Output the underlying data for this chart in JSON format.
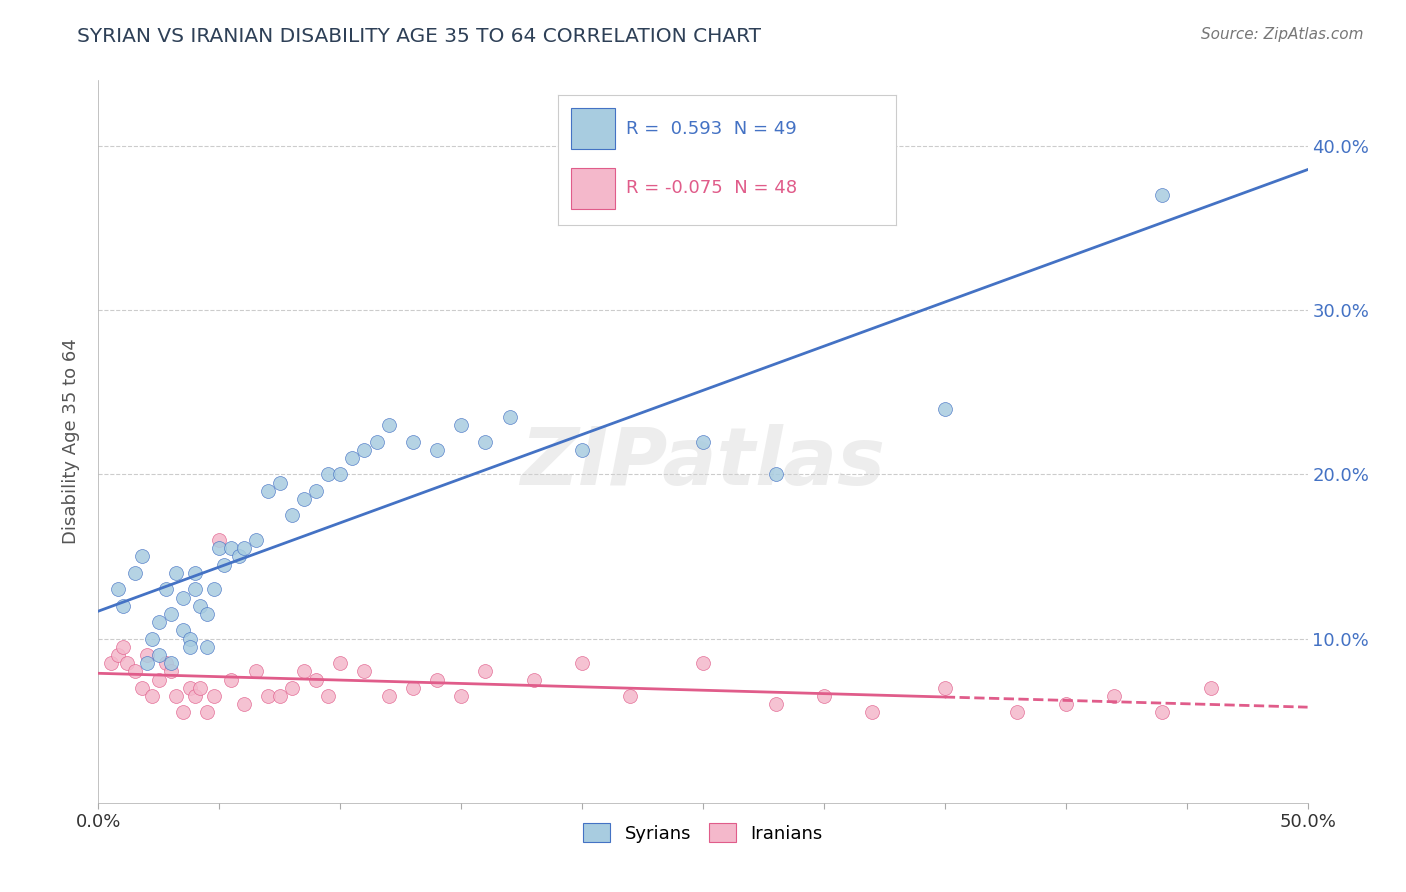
{
  "title": "SYRIAN VS IRANIAN DISABILITY AGE 35 TO 64 CORRELATION CHART",
  "source_text": "Source: ZipAtlas.com",
  "ylabel": "Disability Age 35 to 64",
  "xlim": [
    0.0,
    0.5
  ],
  "ylim": [
    0.0,
    0.44
  ],
  "xticks": [
    0.0,
    0.05,
    0.1,
    0.15,
    0.2,
    0.25,
    0.3,
    0.35,
    0.4,
    0.45,
    0.5
  ],
  "yticks": [
    0.0,
    0.1,
    0.2,
    0.3,
    0.4
  ],
  "background_color": "#ffffff",
  "grid_color": "#cccccc",
  "syrians_color": "#a8cce0",
  "iranians_color": "#f4b8cb",
  "syrian_line_color": "#4472c4",
  "iranian_line_color": "#e05c8a",
  "syrian_R": 0.593,
  "syrian_N": 49,
  "iranian_R": -0.075,
  "iranian_N": 48,
  "watermark": "ZIPatlas",
  "solid_cutoff": 0.35,
  "syrians_x": [
    0.008,
    0.01,
    0.015,
    0.018,
    0.02,
    0.022,
    0.025,
    0.025,
    0.028,
    0.03,
    0.03,
    0.032,
    0.035,
    0.035,
    0.038,
    0.038,
    0.04,
    0.04,
    0.042,
    0.045,
    0.045,
    0.048,
    0.05,
    0.052,
    0.055,
    0.058,
    0.06,
    0.065,
    0.07,
    0.075,
    0.08,
    0.085,
    0.09,
    0.095,
    0.1,
    0.105,
    0.11,
    0.115,
    0.12,
    0.13,
    0.14,
    0.15,
    0.16,
    0.17,
    0.2,
    0.25,
    0.28,
    0.35,
    0.44
  ],
  "syrians_y": [
    0.13,
    0.12,
    0.14,
    0.15,
    0.085,
    0.1,
    0.11,
    0.09,
    0.13,
    0.115,
    0.085,
    0.14,
    0.125,
    0.105,
    0.1,
    0.095,
    0.14,
    0.13,
    0.12,
    0.115,
    0.095,
    0.13,
    0.155,
    0.145,
    0.155,
    0.15,
    0.155,
    0.16,
    0.19,
    0.195,
    0.175,
    0.185,
    0.19,
    0.2,
    0.2,
    0.21,
    0.215,
    0.22,
    0.23,
    0.22,
    0.215,
    0.23,
    0.22,
    0.235,
    0.215,
    0.22,
    0.2,
    0.24,
    0.37
  ],
  "iranians_x": [
    0.005,
    0.008,
    0.01,
    0.012,
    0.015,
    0.018,
    0.02,
    0.022,
    0.025,
    0.028,
    0.03,
    0.032,
    0.035,
    0.038,
    0.04,
    0.042,
    0.045,
    0.048,
    0.05,
    0.055,
    0.06,
    0.065,
    0.07,
    0.075,
    0.08,
    0.085,
    0.09,
    0.095,
    0.1,
    0.11,
    0.12,
    0.13,
    0.14,
    0.15,
    0.16,
    0.18,
    0.2,
    0.22,
    0.25,
    0.28,
    0.3,
    0.32,
    0.35,
    0.38,
    0.4,
    0.42,
    0.44,
    0.46
  ],
  "iranians_y": [
    0.085,
    0.09,
    0.095,
    0.085,
    0.08,
    0.07,
    0.09,
    0.065,
    0.075,
    0.085,
    0.08,
    0.065,
    0.055,
    0.07,
    0.065,
    0.07,
    0.055,
    0.065,
    0.16,
    0.075,
    0.06,
    0.08,
    0.065,
    0.065,
    0.07,
    0.08,
    0.075,
    0.065,
    0.085,
    0.08,
    0.065,
    0.07,
    0.075,
    0.065,
    0.08,
    0.075,
    0.085,
    0.065,
    0.085,
    0.06,
    0.065,
    0.055,
    0.07,
    0.055,
    0.06,
    0.065,
    0.055,
    0.07
  ]
}
